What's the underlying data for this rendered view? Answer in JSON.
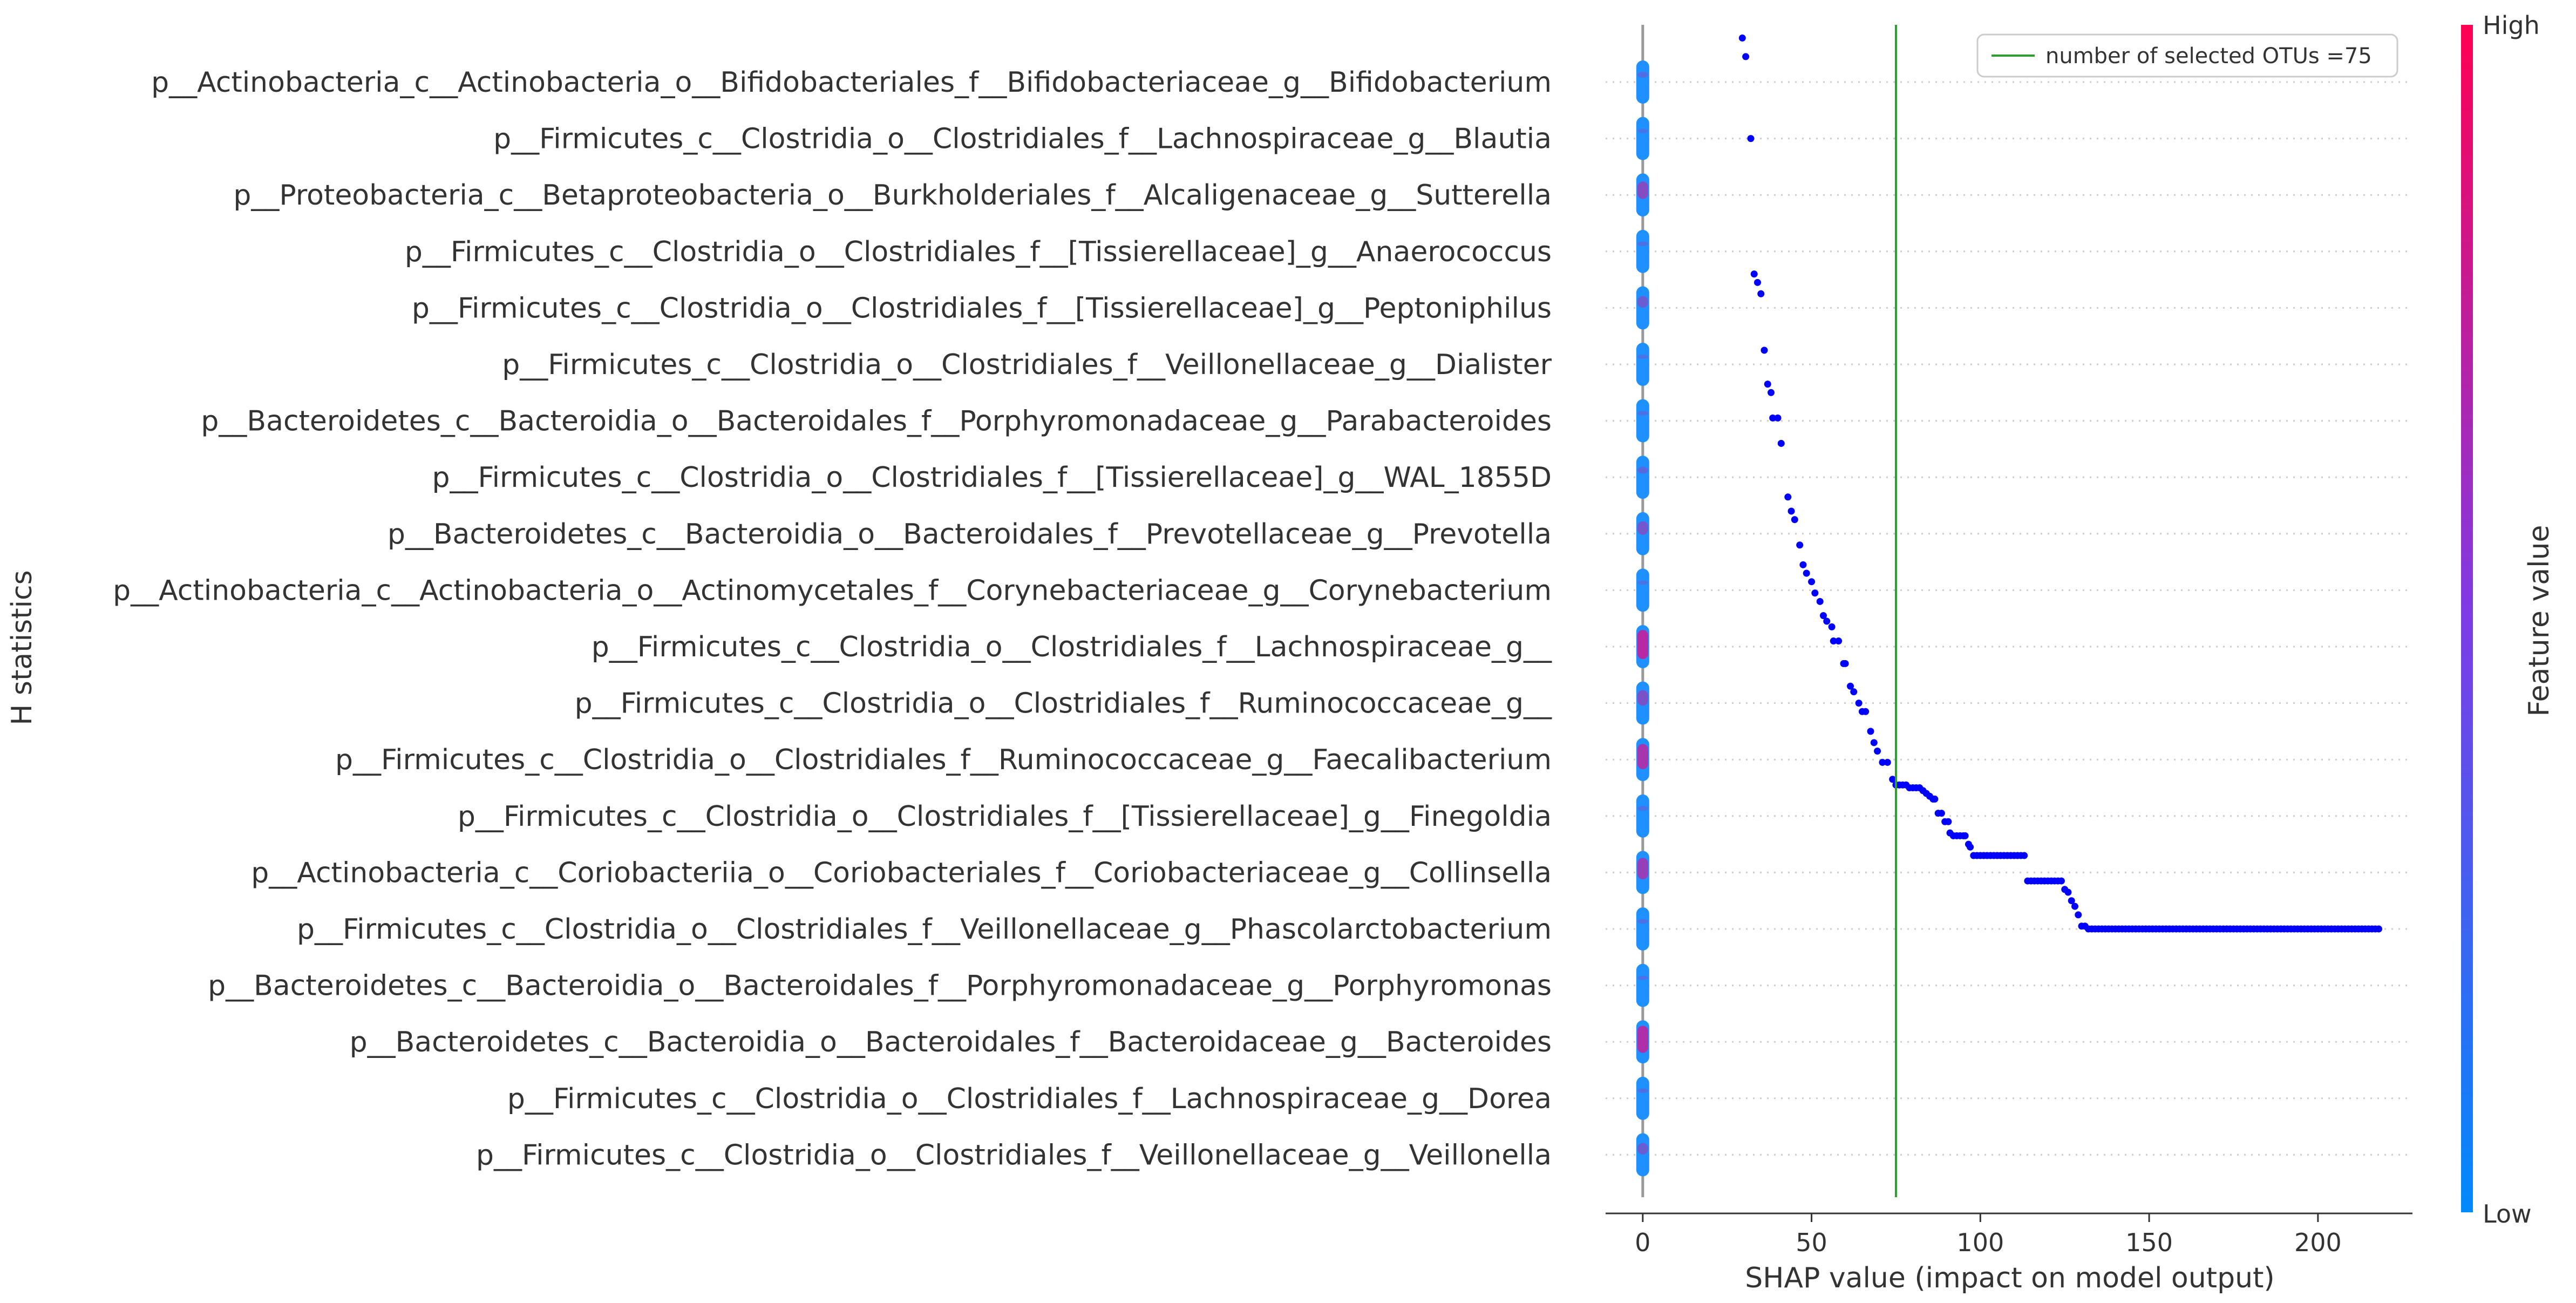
{
  "chart_data": {
    "type": "scatter",
    "subtype": "shap-beeswarm-summary",
    "title": "",
    "xlabel": "SHAP value (impact on model output)",
    "ylabel": "H statistics",
    "xlim": [
      -11,
      228
    ],
    "xticks": [
      0,
      50,
      100,
      150,
      200
    ],
    "grid": "horizontal dotted row guides",
    "features": [
      "p__Actinobacteria_c__Actinobacteria_o__Bifidobacteriales_f__Bifidobacteriaceae_g__Bifidobacterium",
      "p__Firmicutes_c__Clostridia_o__Clostridiales_f__Lachnospiraceae_g__Blautia",
      "p__Proteobacteria_c__Betaproteobacteria_o__Burkholderiales_f__Alcaligenaceae_g__Sutterella",
      "p__Firmicutes_c__Clostridia_o__Clostridiales_f__[Tissierellaceae]_g__Anaerococcus",
      "p__Firmicutes_c__Clostridia_o__Clostridiales_f__[Tissierellaceae]_g__Peptoniphilus",
      "p__Firmicutes_c__Clostridia_o__Clostridiales_f__Veillonellaceae_g__Dialister",
      "p__Bacteroidetes_c__Bacteroidia_o__Bacteroidales_f__Porphyromonadaceae_g__Parabacteroides",
      "p__Firmicutes_c__Clostridia_o__Clostridiales_f__[Tissierellaceae]_g__WAL_1855D",
      "p__Bacteroidetes_c__Bacteroidia_o__Bacteroidales_f__Prevotellaceae_g__Prevotella",
      "p__Actinobacteria_c__Actinobacteria_o__Actinomycetales_f__Corynebacteriaceae_g__Corynebacterium",
      "p__Firmicutes_c__Clostridia_o__Clostridiales_f__Lachnospiraceae_g__",
      "p__Firmicutes_c__Clostridia_o__Clostridiales_f__Ruminococcaceae_g__",
      "p__Firmicutes_c__Clostridia_o__Clostridiales_f__Ruminococcaceae_g__Faecalibacterium",
      "p__Firmicutes_c__Clostridia_o__Clostridiales_f__[Tissierellaceae]_g__Finegoldia",
      "p__Actinobacteria_c__Coriobacteriia_o__Coriobacteriales_f__Coriobacteriaceae_g__Collinsella",
      "p__Firmicutes_c__Clostridia_o__Clostridiales_f__Veillonellaceae_g__Phascolarctobacterium",
      "p__Bacteroidetes_c__Bacteroidia_o__Bacteroidales_f__Porphyromonadaceae_g__Porphyromonas",
      "p__Bacteroidetes_c__Bacteroidia_o__Bacteroidales_f__Bacteroidaceae_g__Bacteroides",
      "p__Firmicutes_c__Clostridia_o__Clostridiales_f__Lachnospiraceae_g__Dorea",
      "p__Firmicutes_c__Clostridia_o__Clostridiales_f__Veillonellaceae_g__Veillonella"
    ],
    "shap_cluster": {
      "x_value": 0,
      "note_color_mix": [
        0.15,
        0.1,
        0.45,
        0.12,
        0.3,
        0.1,
        0.12,
        0.18,
        0.35,
        0.1,
        0.75,
        0.4,
        0.65,
        0.12,
        0.55,
        0.12,
        0.1,
        0.7,
        0.12,
        0.3
      ]
    },
    "vline": {
      "x": 75,
      "label": "number of selected OTUs =75",
      "color": "#2ca02c"
    },
    "legend": {
      "position": "top-right",
      "entries": [
        "number of selected OTUs =75"
      ]
    },
    "curve_series": {
      "name": "number of selected OTUs",
      "color": "#0000ff",
      "points": [
        [
          29.5,
          -0.78
        ],
        [
          30.5,
          -0.45
        ],
        [
          32,
          1.0
        ],
        [
          33,
          3.4
        ],
        [
          34,
          3.55
        ],
        [
          35,
          3.75
        ],
        [
          36,
          4.75
        ],
        [
          37,
          5.35
        ],
        [
          38,
          5.5
        ],
        [
          38.5,
          5.95
        ],
        [
          40,
          5.95
        ],
        [
          41,
          6.4
        ],
        [
          43,
          7.35
        ],
        [
          44,
          7.6
        ],
        [
          45,
          7.75
        ],
        [
          46.5,
          8.2
        ],
        [
          47.5,
          8.55
        ],
        [
          48.5,
          8.7
        ],
        [
          50,
          8.85
        ],
        [
          51,
          9.05
        ],
        [
          52.5,
          9.2
        ],
        [
          53.5,
          9.45
        ],
        [
          54.5,
          9.55
        ],
        [
          56,
          9.65
        ],
        [
          56.5,
          9.9
        ],
        [
          58,
          9.9
        ],
        [
          59.5,
          10.3
        ],
        [
          60,
          10.3
        ],
        [
          61.5,
          10.7
        ],
        [
          62.5,
          10.8
        ],
        [
          64,
          11.0
        ],
        [
          65,
          11.15
        ],
        [
          66,
          11.15
        ],
        [
          67.5,
          11.5
        ],
        [
          68.5,
          11.7
        ],
        [
          69.5,
          11.85
        ],
        [
          71,
          12.05
        ],
        [
          72.5,
          12.05
        ],
        [
          74,
          12.35
        ],
        [
          75,
          12.45
        ],
        [
          76,
          12.45
        ],
        [
          77,
          12.45
        ],
        [
          78,
          12.45
        ],
        [
          79,
          12.5
        ],
        [
          80,
          12.5
        ],
        [
          81,
          12.5
        ],
        [
          82,
          12.5
        ],
        [
          83,
          12.55
        ],
        [
          84,
          12.6
        ],
        [
          85,
          12.65
        ],
        [
          86,
          12.7
        ],
        [
          86.5,
          12.7
        ],
        [
          87.5,
          12.95
        ],
        [
          88.5,
          12.95
        ],
        [
          89.5,
          13.1
        ],
        [
          90.5,
          13.1
        ],
        [
          91,
          13.3
        ],
        [
          92,
          13.35
        ],
        [
          93,
          13.35
        ],
        [
          94,
          13.35
        ],
        [
          95,
          13.35
        ],
        [
          95.5,
          13.35
        ],
        [
          96.5,
          13.5
        ],
        [
          97,
          13.55
        ],
        [
          98,
          13.7
        ],
        [
          99,
          13.7
        ],
        [
          100,
          13.7
        ],
        [
          101,
          13.7
        ],
        [
          102,
          13.7
        ],
        [
          103,
          13.7
        ],
        [
          104,
          13.7
        ],
        [
          105,
          13.7
        ],
        [
          106,
          13.7
        ],
        [
          107,
          13.7
        ],
        [
          108,
          13.7
        ],
        [
          109,
          13.7
        ],
        [
          110,
          13.7
        ],
        [
          111,
          13.7
        ],
        [
          112,
          13.7
        ],
        [
          113,
          13.7
        ],
        [
          114,
          14.15
        ],
        [
          115,
          14.15
        ],
        [
          116,
          14.15
        ],
        [
          117,
          14.15
        ],
        [
          118,
          14.15
        ],
        [
          119,
          14.15
        ],
        [
          120,
          14.15
        ],
        [
          121,
          14.15
        ],
        [
          122,
          14.15
        ],
        [
          123,
          14.15
        ],
        [
          124,
          14.15
        ],
        [
          125,
          14.3
        ],
        [
          126,
          14.35
        ],
        [
          127,
          14.5
        ],
        [
          128,
          14.6
        ],
        [
          129,
          14.75
        ],
        [
          130,
          14.95
        ],
        [
          131,
          14.95
        ],
        [
          132,
          15.0
        ],
        [
          133,
          15.0
        ],
        [
          134,
          15.0
        ],
        [
          135,
          15.0
        ]
      ],
      "flat_segment": {
        "y": 15.0,
        "x_start": 135,
        "x_end": 218,
        "step": 1
      }
    },
    "colorbar": {
      "label": "Feature value",
      "high_label": "High",
      "low_label": "Low",
      "colors": [
        "#008afb",
        "#7d3ce6",
        "#ff0052"
      ]
    },
    "colors": {
      "axis": "#333333",
      "zero_line": "#999999",
      "grid": "#cccccc",
      "curve": "#0000ff"
    }
  }
}
